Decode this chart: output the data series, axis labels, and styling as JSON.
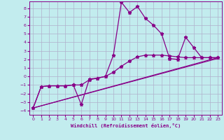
{
  "xlabel": "Windchill (Refroidissement éolien,°C)",
  "xlim": [
    -0.5,
    23.5
  ],
  "ylim": [
    -4.5,
    8.8
  ],
  "xticks": [
    0,
    1,
    2,
    3,
    4,
    5,
    6,
    7,
    8,
    9,
    10,
    11,
    12,
    13,
    14,
    15,
    16,
    17,
    18,
    19,
    20,
    21,
    22,
    23
  ],
  "yticks": [
    -4,
    -3,
    -2,
    -1,
    0,
    1,
    2,
    3,
    4,
    5,
    6,
    7,
    8
  ],
  "bg_color": "#c2ecee",
  "grid_color": "#b0b0cc",
  "line_color": "#880088",
  "line_width": 0.9,
  "marker_size": 3.5,
  "series0_x": [
    0,
    1,
    2,
    3,
    4,
    5,
    6,
    7,
    8,
    9,
    10,
    11,
    12,
    13,
    14,
    15,
    16,
    17,
    18,
    19,
    20,
    21,
    22,
    23
  ],
  "series0_y": [
    -3.7,
    -1.2,
    -1.1,
    -1.1,
    -1.1,
    -1.0,
    -3.3,
    -0.3,
    -0.2,
    0.0,
    2.5,
    8.7,
    7.5,
    8.2,
    6.8,
    6.0,
    5.0,
    2.1,
    2.0,
    4.6,
    3.4,
    2.2,
    2.2,
    2.2
  ],
  "series1_x": [
    0,
    1,
    2,
    3,
    4,
    5,
    6,
    7,
    8,
    9,
    10,
    11,
    12,
    13,
    14,
    15,
    16,
    17,
    18,
    19,
    20,
    21,
    22,
    23
  ],
  "series1_y": [
    -3.7,
    -1.2,
    -1.1,
    -1.1,
    -1.1,
    -1.0,
    -1.0,
    -0.4,
    -0.2,
    0.0,
    0.5,
    1.2,
    1.8,
    2.3,
    2.5,
    2.5,
    2.5,
    2.4,
    2.3,
    2.2,
    2.2,
    2.2,
    2.2,
    2.2
  ],
  "line2_x": [
    0,
    23
  ],
  "line2_y": [
    -3.7,
    2.2
  ],
  "line3_x": [
    0,
    23
  ],
  "line3_y": [
    -3.7,
    2.1
  ]
}
